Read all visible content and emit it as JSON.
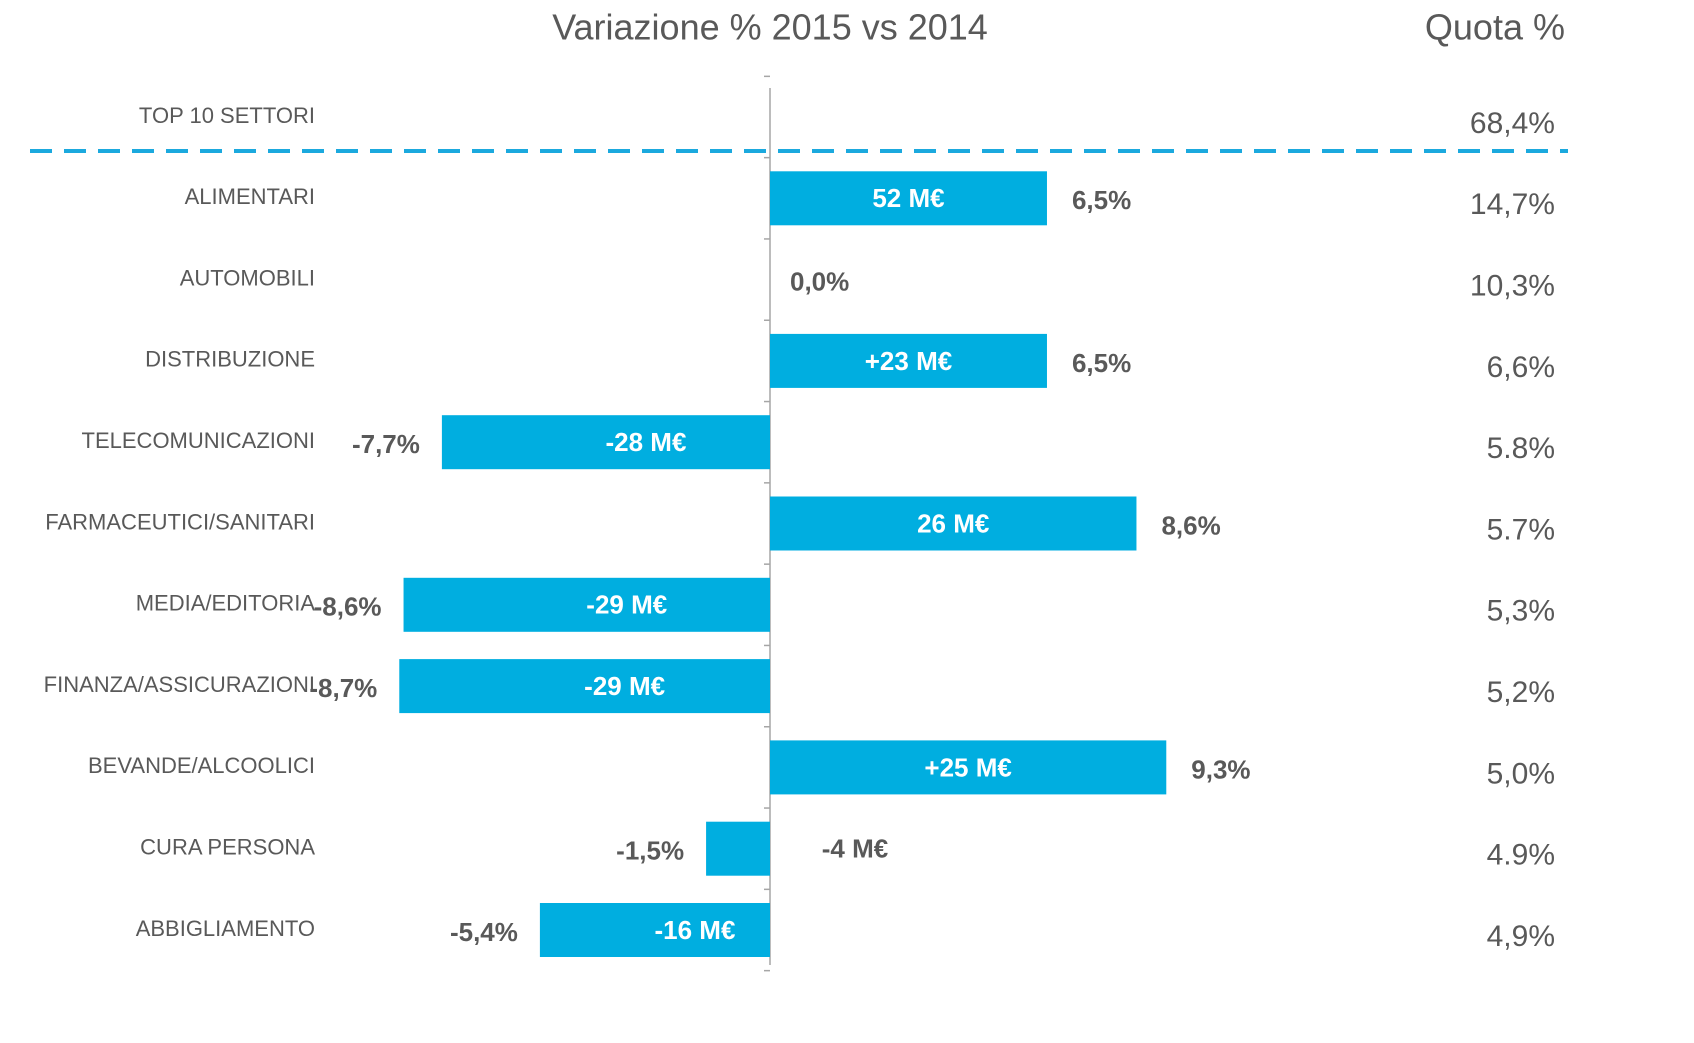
{
  "chart_data": {
    "type": "bar",
    "orientation": "horizontal",
    "title": "Variazione %  2015 vs 2014",
    "share_title": "Quota %",
    "categories": [
      "TOP 10 SETTORI",
      "ALIMENTARI",
      "AUTOMOBILI",
      "DISTRIBUZIONE",
      "TELECOMUNICAZIONI",
      "FARMACEUTICI/SANITARI",
      "MEDIA/EDITORIA",
      "FINANZA/ASSICURAZIONI",
      "BEVANDE/ALCOOLICI",
      "CURA PERSONA",
      "ABBIGLIAMENTO"
    ],
    "values": [
      null,
      6.5,
      0.0,
      6.5,
      -7.7,
      8.6,
      -8.6,
      -8.7,
      9.3,
      -1.5,
      -5.4
    ],
    "value_labels": [
      null,
      "6,5%",
      "0,0%",
      "6,5%",
      "-7,7%",
      "8,6%",
      "-8,6%",
      "-8,7%",
      "9,3%",
      "-1,5%",
      "-5,4%"
    ],
    "amount_labels": [
      null,
      "52 M€",
      null,
      "+23 M€",
      "-28 M€",
      "26 M€",
      "-29 M€",
      "-29 M€",
      "+25 M€",
      "-4 M€",
      "-16 M€"
    ],
    "share_labels": [
      "68,4%",
      "14,7%",
      "10,3%",
      "6,6%",
      "5.8%",
      "5.7%",
      "5,3%",
      "5,2%",
      "5,0%",
      "4.9%",
      "4,9%"
    ],
    "color": "#00aee0",
    "xlim": [
      -18,
      18
    ]
  }
}
